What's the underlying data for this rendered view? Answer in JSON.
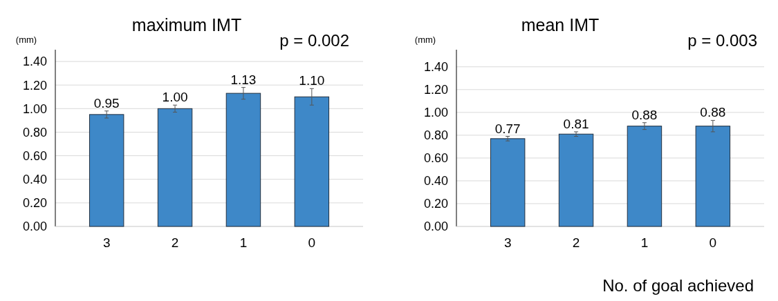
{
  "chart_data": [
    {
      "type": "bar",
      "title": "maximum IMT",
      "ylabel": "(mm)",
      "annotations": [
        "p = 0.002"
      ],
      "categories": [
        "3",
        "2",
        "1",
        "0"
      ],
      "values": [
        0.95,
        1.0,
        1.13,
        1.1
      ],
      "value_labels": [
        "0.95",
        "1.00",
        "1.13",
        "1.10"
      ],
      "errors": [
        0.03,
        0.03,
        0.05,
        0.07
      ],
      "color": "#3e88c8",
      "ylim": [
        0,
        1.5
      ],
      "yticks": [
        {
          "value": 0,
          "label": "0.00"
        },
        {
          "value": 0.2,
          "label": "0.20"
        },
        {
          "value": 0.4,
          "label": "0.40"
        },
        {
          "value": 0.6,
          "label": "0.60"
        },
        {
          "value": 0.8,
          "label": "0.80"
        },
        {
          "value": 1,
          "label": "1.00"
        },
        {
          "value": 1.2,
          "label": "1.20"
        },
        {
          "value": 1.4,
          "label": "1.40"
        }
      ],
      "grid": "y"
    },
    {
      "type": "bar",
      "title": "mean IMT",
      "ylabel": "(mm)",
      "xlabel": "No. of goal achieved",
      "annotations": [
        "p = 0.003"
      ],
      "categories": [
        "3",
        "2",
        "1",
        "0"
      ],
      "values": [
        0.77,
        0.81,
        0.88,
        0.88
      ],
      "value_labels": [
        "0.77",
        "0.81",
        "0.88",
        "0.88"
      ],
      "errors": [
        0.02,
        0.02,
        0.03,
        0.05
      ],
      "color": "#3e88c8",
      "ylim": [
        0,
        1.55
      ],
      "yticks": [
        {
          "value": 0,
          "label": "0.00"
        },
        {
          "value": 0.2,
          "label": "0.20"
        },
        {
          "value": 0.4,
          "label": "0.40"
        },
        {
          "value": 0.6,
          "label": "0.60"
        },
        {
          "value": 0.8,
          "label": "0.80"
        },
        {
          "value": 1,
          "label": "1.00"
        },
        {
          "value": 1.2,
          "label": "1.20"
        },
        {
          "value": 1.4,
          "label": "1.40"
        }
      ],
      "grid": "y"
    }
  ]
}
